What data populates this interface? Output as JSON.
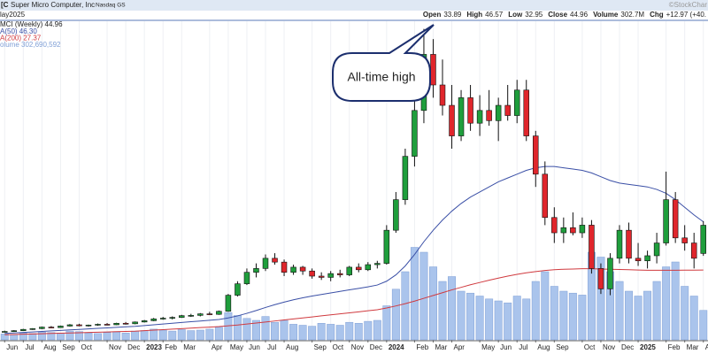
{
  "header": {
    "icon": "[C",
    "title": "Super Micro Computer, Inc",
    "exchange": "Nasdaq GS",
    "watermark": "©StockChar",
    "date": "lay2025",
    "quote": [
      {
        "label": "Open",
        "value": 33.89
      },
      {
        "label": "High",
        "value": 46.57
      },
      {
        "label": "Low",
        "value": 32.95
      },
      {
        "label": "Close",
        "value": 44.96
      },
      {
        "label": "Volume",
        "value": "302.7M"
      },
      {
        "label": "Chg",
        "value": "+12.97 (+40."
      }
    ]
  },
  "chart_data": {
    "type": "candlestick",
    "legend": "MCI (Weekly) 44.96",
    "annotation": "All-time high",
    "color_up": "#1f9e3c",
    "color_down": "#e0262c",
    "open": [
      3.2,
      3.3,
      3.6,
      4.1,
      4.4,
      5.0,
      4.8,
      5.4,
      5.9,
      5.5,
      5.8,
      6.1,
      5.9,
      6.5,
      6.3,
      7.0,
      7.5,
      8.2,
      8.5,
      8.8,
      9.5,
      9.6,
      10.2,
      10.0,
      11.2,
      17.5,
      22.0,
      26.5,
      28.0,
      32.0,
      30.5,
      26.5,
      28.5,
      27.0,
      25.0,
      24.5,
      26.0,
      25.5,
      28.5,
      27.5,
      29.5,
      30.0,
      43.0,
      55.0,
      72.0,
      90.0,
      112.0,
      100.0,
      92.0,
      80.0,
      95.0,
      85.0,
      90.0,
      86.0,
      92.0,
      88.0,
      98.0,
      80.0,
      65.0,
      48.0,
      42.0,
      44.0,
      42.0,
      45.0,
      28.0,
      20.0,
      32.0,
      43.0,
      32.0,
      31.0,
      33.0,
      38.0,
      55.0,
      40.0,
      38.0,
      33.89
    ],
    "high": [
      3.6,
      3.8,
      4.3,
      4.6,
      5.2,
      5.4,
      5.6,
      6.2,
      6.3,
      6.0,
      6.4,
      6.6,
      6.7,
      7.0,
      7.2,
      7.8,
      8.6,
      9.0,
      9.2,
      9.8,
      10.2,
      10.5,
      11.0,
      11.5,
      18.0,
      23.0,
      28.0,
      30.0,
      33.5,
      34.0,
      31.5,
      29.5,
      29.0,
      28.0,
      26.5,
      27.0,
      27.5,
      29.0,
      30.0,
      30.5,
      31.0,
      45.0,
      58.0,
      75.0,
      95.0,
      122.0,
      118.0,
      110.0,
      100.0,
      98.0,
      100.0,
      96.0,
      98.0,
      95.0,
      100.0,
      102.0,
      102.0,
      82.0,
      70.0,
      52.0,
      48.0,
      50.0,
      48.0,
      47.0,
      30.0,
      34.0,
      45.0,
      46.0,
      38.0,
      35.0,
      42.0,
      66.0,
      58.0,
      45.0,
      42.0,
      46.57
    ],
    "low": [
      2.9,
      3.1,
      3.5,
      3.9,
      4.2,
      4.6,
      4.7,
      5.2,
      5.3,
      5.2,
      5.5,
      5.7,
      5.8,
      6.0,
      6.1,
      6.8,
      7.3,
      7.9,
      8.0,
      8.6,
      9.0,
      9.2,
      9.7,
      9.8,
      11.0,
      17.0,
      21.5,
      24.5,
      27.0,
      29.5,
      25.0,
      25.5,
      25.5,
      24.0,
      23.5,
      23.0,
      24.5,
      25.0,
      26.5,
      27.0,
      28.0,
      29.5,
      42.0,
      53.0,
      68.0,
      85.0,
      95.0,
      88.0,
      75.0,
      78.0,
      82.0,
      80.0,
      84.0,
      78.0,
      86.0,
      85.0,
      78.0,
      60.0,
      45.0,
      38.0,
      38.0,
      41.0,
      40.0,
      26.0,
      18.0,
      17.5,
      30.0,
      30.0,
      29.0,
      28.0,
      30.0,
      37.0,
      38.0,
      35.0,
      28.0,
      32.95
    ],
    "close": [
      3.3,
      3.6,
      4.1,
      4.4,
      5.0,
      4.8,
      5.4,
      5.9,
      5.5,
      5.8,
      6.1,
      5.9,
      6.5,
      6.3,
      7.0,
      7.5,
      8.2,
      8.5,
      8.8,
      9.5,
      9.6,
      10.2,
      10.0,
      11.2,
      17.5,
      22.0,
      26.5,
      28.0,
      32.0,
      30.5,
      26.5,
      28.5,
      27.0,
      25.0,
      24.5,
      26.0,
      25.5,
      28.5,
      27.5,
      29.5,
      30.0,
      43.0,
      55.0,
      72.0,
      90.0,
      112.0,
      100.0,
      92.0,
      80.0,
      95.0,
      85.0,
      90.0,
      86.0,
      92.0,
      88.0,
      98.0,
      80.0,
      65.0,
      48.0,
      42.0,
      44.0,
      42.0,
      45.0,
      28.0,
      20.0,
      32.0,
      43.0,
      32.0,
      31.0,
      33.0,
      38.0,
      55.0,
      40.0,
      38.0,
      32.0,
      44.96
    ],
    "overlays": [
      {
        "name": "A(50) 46.30",
        "color": "#3a4fa6",
        "values": [
          2.5,
          2.7,
          2.9,
          3.1,
          3.3,
          3.5,
          3.7,
          3.9,
          4.1,
          4.3,
          4.5,
          4.7,
          4.9,
          5.1,
          5.3,
          5.6,
          5.9,
          6.2,
          6.5,
          6.8,
          7.1,
          7.4,
          7.7,
          8.0,
          8.6,
          9.4,
          10.4,
          11.5,
          12.7,
          13.8,
          14.8,
          15.7,
          16.5,
          17.2,
          17.8,
          18.4,
          19.0,
          19.6,
          20.2,
          20.8,
          21.5,
          23.0,
          25.5,
          29.0,
          33.5,
          38.5,
          43.0,
          47.0,
          50.5,
          53.5,
          56.0,
          58.0,
          60.0,
          62.0,
          63.5,
          65.0,
          66.5,
          67.5,
          68.0,
          68.0,
          67.5,
          67.0,
          66.5,
          65.5,
          64.0,
          62.5,
          61.5,
          61.0,
          60.5,
          60.0,
          59.0,
          57.5,
          55.0,
          52.0,
          49.0,
          46.3
        ]
      },
      {
        "name": "A(200) 27.37",
        "color": "#d03a3f",
        "values": [
          2.0,
          2.1,
          2.2,
          2.3,
          2.4,
          2.5,
          2.6,
          2.7,
          2.8,
          2.9,
          3.0,
          3.1,
          3.2,
          3.3,
          3.4,
          3.6,
          3.8,
          4.0,
          4.2,
          4.4,
          4.6,
          4.8,
          5.0,
          5.2,
          5.5,
          5.8,
          6.2,
          6.6,
          7.0,
          7.4,
          7.8,
          8.2,
          8.6,
          9.0,
          9.4,
          9.8,
          10.2,
          10.6,
          11.0,
          11.4,
          11.8,
          12.5,
          13.3,
          14.2,
          15.2,
          16.3,
          17.4,
          18.5,
          19.6,
          20.6,
          21.6,
          22.5,
          23.4,
          24.2,
          25.0,
          25.7,
          26.3,
          26.8,
          27.2,
          27.5,
          27.7,
          27.8,
          27.9,
          27.9,
          27.8,
          27.7,
          27.6,
          27.5,
          27.4,
          27.3,
          27.3,
          27.3,
          27.3,
          27.35,
          27.36,
          27.37
        ]
      }
    ],
    "volume": {
      "name": "olume 302,690,592",
      "color": "#aac4ec",
      "lim": [
        0,
        1000
      ],
      "values": [
        60,
        55,
        70,
        65,
        80,
        75,
        70,
        90,
        85,
        70,
        65,
        75,
        80,
        70,
        90,
        95,
        110,
        100,
        90,
        105,
        95,
        100,
        110,
        130,
        280,
        250,
        220,
        200,
        240,
        180,
        200,
        160,
        150,
        140,
        170,
        160,
        150,
        180,
        170,
        190,
        200,
        350,
        520,
        700,
        950,
        900,
        750,
        600,
        650,
        500,
        480,
        450,
        420,
        400,
        380,
        450,
        420,
        600,
        700,
        550,
        500,
        480,
        460,
        900,
        850,
        700,
        600,
        500,
        450,
        500,
        600,
        750,
        800,
        550,
        450,
        302.7
      ]
    },
    "ylim": [
      0,
      125
    ],
    "xlim": [
      -0.5,
      75.5
    ],
    "grid": true,
    "xticks": [
      {
        "value": 0,
        "label": "Jun"
      },
      {
        "value": 2,
        "label": "Jul"
      },
      {
        "value": 4,
        "label": "Aug"
      },
      {
        "value": 6,
        "label": "Sep"
      },
      {
        "value": 8,
        "label": "Oct"
      },
      {
        "value": 11,
        "label": "Nov"
      },
      {
        "value": 13,
        "label": "Dec"
      },
      {
        "value": 15,
        "label": "2023"
      },
      {
        "value": 17,
        "label": "Feb"
      },
      {
        "value": 19,
        "label": "Mar"
      },
      {
        "value": 22,
        "label": "Apr"
      },
      {
        "value": 24,
        "label": "May"
      },
      {
        "value": 26,
        "label": "Jun"
      },
      {
        "value": 28,
        "label": "Jul"
      },
      {
        "value": 30,
        "label": "Aug"
      },
      {
        "value": 33,
        "label": "Sep"
      },
      {
        "value": 35,
        "label": "Oct"
      },
      {
        "value": 37,
        "label": "Nov"
      },
      {
        "value": 39,
        "label": "Dec"
      },
      {
        "value": 41,
        "label": "2024"
      },
      {
        "value": 44,
        "label": "Feb"
      },
      {
        "value": 46,
        "label": "Mar"
      },
      {
        "value": 48,
        "label": "Apr"
      },
      {
        "value": 51,
        "label": "May"
      },
      {
        "value": 53,
        "label": "Jun"
      },
      {
        "value": 55,
        "label": "Jul"
      },
      {
        "value": 57,
        "label": "Aug"
      },
      {
        "value": 59,
        "label": "Sep"
      },
      {
        "value": 62,
        "label": "Oct"
      },
      {
        "value": 64,
        "label": "Nov"
      },
      {
        "value": 66,
        "label": "Dec"
      },
      {
        "value": 68,
        "label": "2025"
      },
      {
        "value": 71,
        "label": "Feb"
      },
      {
        "value": 73,
        "label": "Mar"
      },
      {
        "value": 75,
        "label": "Apr"
      }
    ]
  }
}
